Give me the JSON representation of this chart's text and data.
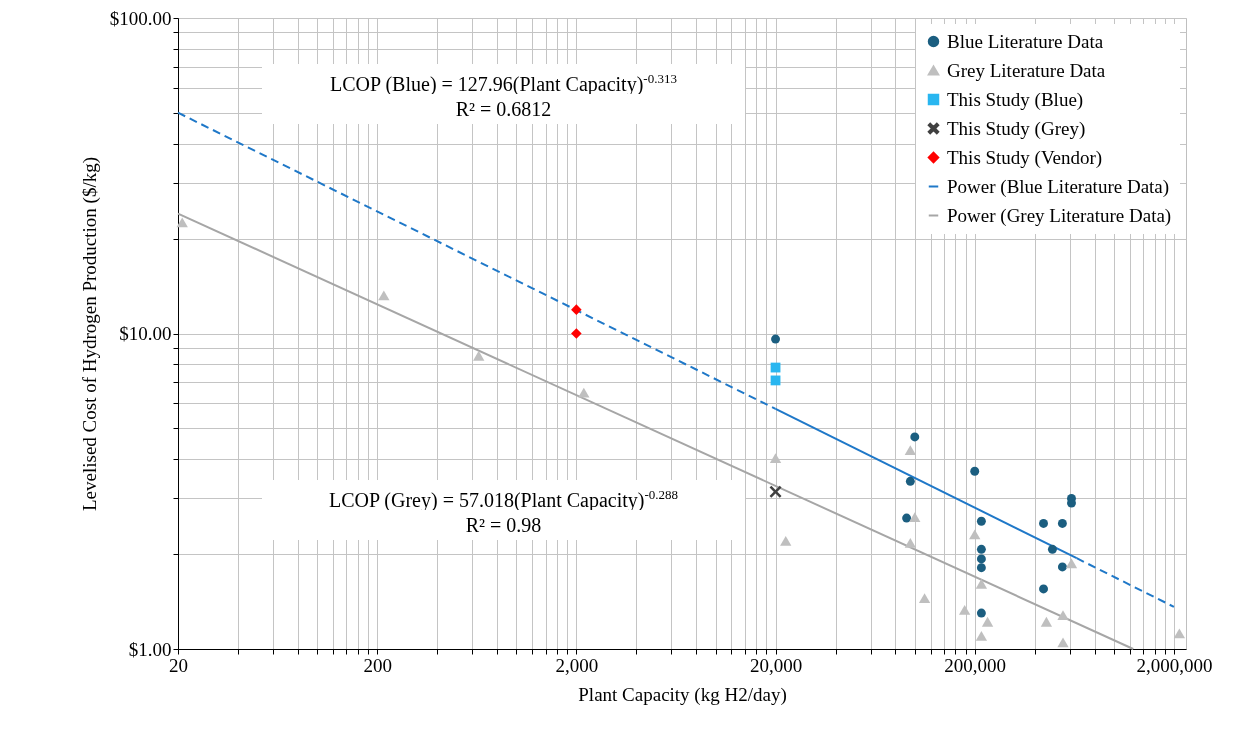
{
  "chart_data": {
    "type": "scatter",
    "xlabel": "Plant Capacity (kg H2/day)",
    "ylabel": "Levelised Cost of Hydrogen Production ($/kg)",
    "log": "xy",
    "grid": true,
    "legend": "top right",
    "xlim": [
      20,
      2300000
    ],
    "ylim": [
      1,
      100
    ],
    "xticks": [
      20,
      {
        "value": 40,
        "label": null
      },
      {
        "value": 60,
        "label": null
      },
      {
        "value": 80,
        "label": null
      },
      {
        "value": 100,
        "label": null
      },
      {
        "value": 120,
        "label": null
      },
      {
        "value": 140,
        "label": null
      },
      {
        "value": 160,
        "label": null
      },
      {
        "value": 180,
        "label": null
      },
      200,
      {
        "value": 400,
        "label": null
      },
      {
        "value": 600,
        "label": null
      },
      {
        "value": 800,
        "label": null
      },
      {
        "value": 1000,
        "label": null
      },
      {
        "value": 1200,
        "label": null
      },
      {
        "value": 1400,
        "label": null
      },
      {
        "value": 1600,
        "label": null
      },
      {
        "value": 1800,
        "label": null
      },
      {
        "value": 2000,
        "label": "2,000"
      },
      {
        "value": 4000,
        "label": null
      },
      {
        "value": 6000,
        "label": null
      },
      {
        "value": 8000,
        "label": null
      },
      {
        "value": 10000,
        "label": null
      },
      {
        "value": 12000,
        "label": null
      },
      {
        "value": 14000,
        "label": null
      },
      {
        "value": 16000,
        "label": null
      },
      {
        "value": 18000,
        "label": null
      },
      {
        "value": 20000,
        "label": "20,000"
      },
      {
        "value": 40000,
        "label": null
      },
      {
        "value": 60000,
        "label": null
      },
      {
        "value": 80000,
        "label": null
      },
      {
        "value": 100000,
        "label": null
      },
      {
        "value": 120000,
        "label": null
      },
      {
        "value": 140000,
        "label": null
      },
      {
        "value": 160000,
        "label": null
      },
      {
        "value": 180000,
        "label": null
      },
      {
        "value": 200000,
        "label": "200,000"
      },
      {
        "value": 400000,
        "label": null
      },
      {
        "value": 600000,
        "label": null
      },
      {
        "value": 800000,
        "label": null
      },
      {
        "value": 1000000,
        "label": null
      },
      {
        "value": 1200000,
        "label": null
      },
      {
        "value": 1400000,
        "label": null
      },
      {
        "value": 1600000,
        "label": null
      },
      {
        "value": 1800000,
        "label": null
      },
      {
        "value": 2000000,
        "label": "2,000,000"
      }
    ],
    "yticks": [
      {
        "value": 1,
        "label": "$1.00"
      },
      {
        "value": 2,
        "label": null
      },
      {
        "value": 3,
        "label": null
      },
      {
        "value": 4,
        "label": null
      },
      {
        "value": 5,
        "label": null
      },
      {
        "value": 6,
        "label": null
      },
      {
        "value": 7,
        "label": null
      },
      {
        "value": 8,
        "label": null
      },
      {
        "value": 9,
        "label": null
      },
      {
        "value": 10,
        "label": "$10.00"
      },
      {
        "value": 20,
        "label": null
      },
      {
        "value": 30,
        "label": null
      },
      {
        "value": 40,
        "label": null
      },
      {
        "value": 50,
        "label": null
      },
      {
        "value": 60,
        "label": null
      },
      {
        "value": 70,
        "label": null
      },
      {
        "value": 80,
        "label": null
      },
      {
        "value": 90,
        "label": null
      },
      {
        "value": 100,
        "label": "$100.00"
      }
    ],
    "annotations": [
      "LCOP (Blue) = 127.96(Plant Capacity)$^{-0.313}$",
      "R² = 0.6812",
      "LCOP (Grey) = 57.018(Plant Capacity)$^{-0.288}$",
      "R² = 0.98"
    ],
    "series": [
      {
        "type": "line",
        "color": "#1f78c8",
        "line_style": "dashed",
        "x": [
          20,
          20000
        ],
        "values": [
          50.1,
          5.77
        ]
      },
      {
        "type": "line",
        "color": "#1f78c8",
        "line_style": "dashed",
        "x": [
          650000,
          2000000
        ],
        "values": [
          1.94,
          1.36
        ]
      },
      {
        "name": "Power (Blue Literature Data)",
        "type": "line",
        "color": "#1f78c8",
        "line_style": "solid",
        "x": [
          20000,
          650000
        ],
        "values": [
          5.77,
          1.94
        ]
      },
      {
        "name": "Power (Grey Literature Data)",
        "type": "line",
        "color": "#a6a6a6",
        "line_style": "solid",
        "x": [
          20,
          1250000
        ],
        "values": [
          24,
          1.0
        ]
      },
      {
        "name": "Blue Literature Data",
        "marker": "circle",
        "color": "#1b5e80",
        "x": [
          20000,
          100000,
          95000,
          91000,
          200000,
          216000,
          216000,
          216000,
          216000,
          216000,
          443000,
          551000,
          491000,
          551000,
          443000,
          612000,
          612000
        ],
        "values": [
          9.6,
          4.7,
          3.4,
          2.6,
          3.66,
          2.54,
          2.07,
          1.93,
          1.81,
          1.3,
          2.5,
          2.5,
          2.07,
          1.82,
          1.55,
          3.0,
          2.9
        ]
      },
      {
        "name": "Grey Literature Data",
        "marker": "triangle",
        "color": "#bfbfbf",
        "x": [
          21,
          216,
          647,
          2180,
          20000,
          22500,
          95000,
          100000,
          95000,
          112000,
          178000,
          200000,
          216000,
          232000,
          216000,
          458000,
          555000,
          555000,
          612000,
          2130000
        ],
        "values": [
          22.5,
          13.2,
          8.5,
          6.5,
          4.03,
          2.2,
          4.27,
          2.62,
          2.17,
          1.45,
          1.33,
          2.31,
          1.61,
          1.22,
          1.1,
          1.22,
          1.28,
          1.05,
          1.87,
          1.12
        ]
      },
      {
        "name": "This Study (Blue)",
        "marker": "square",
        "color": "#29b6f0",
        "x": [
          20000,
          20000
        ],
        "values": [
          7.8,
          7.1
        ]
      },
      {
        "name": "This Study (Grey)",
        "marker": "cross",
        "color": "#404040",
        "x": [
          20000
        ],
        "values": [
          3.15
        ]
      },
      {
        "name": "This Study (Vendor)",
        "marker": "diamond",
        "color": "#ff0000",
        "x": [
          2000,
          2000
        ],
        "values": [
          11.9,
          10.0
        ]
      }
    ]
  }
}
